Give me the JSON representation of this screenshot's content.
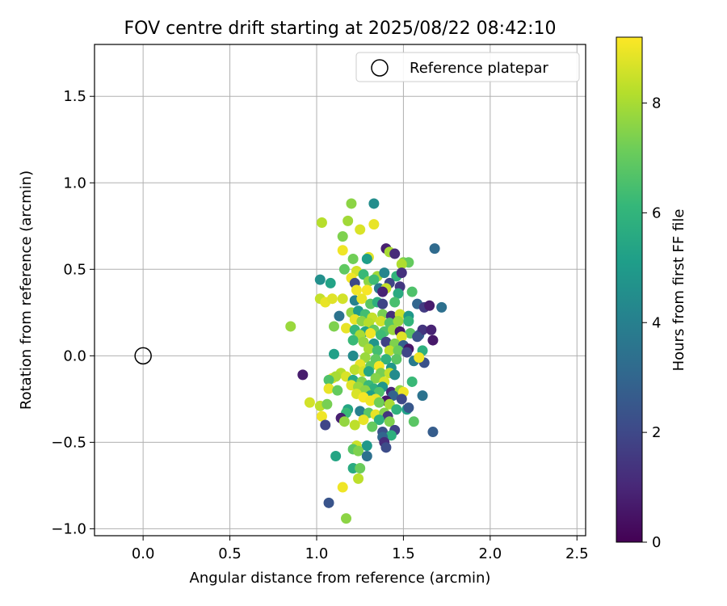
{
  "chart_data": {
    "type": "scatter",
    "title": "FOV centre drift starting at 2025/08/22 08:42:10",
    "xlabel": "Angular distance from reference (arcmin)",
    "ylabel": "Rotation from reference (arcmin)",
    "xlim": [
      -0.28,
      2.55
    ],
    "ylim": [
      -1.04,
      1.8
    ],
    "xticks": [
      0.0,
      0.5,
      1.0,
      1.5,
      2.0,
      2.5
    ],
    "xtick_labels": [
      "0.0",
      "0.5",
      "1.0",
      "1.5",
      "2.0",
      "2.5"
    ],
    "yticks": [
      -1.0,
      -0.5,
      0.0,
      0.5,
      1.0,
      1.5
    ],
    "ytick_labels": [
      "−1.0",
      "−0.5",
      "0.0",
      "0.5",
      "1.0",
      "1.5"
    ],
    "grid": true,
    "legend": {
      "position": "top-right",
      "entries": [
        "Reference platepar"
      ]
    },
    "reference_point": {
      "x": 0.0,
      "y": 0.0
    },
    "colorbar": {
      "label": "Hours from first FF file",
      "colormap": "viridis",
      "range": [
        0,
        9.2
      ],
      "ticks": [
        0,
        2,
        4,
        6,
        8
      ],
      "tick_labels": [
        "0",
        "2",
        "4",
        "6",
        "8"
      ]
    },
    "series": [
      {
        "points": [
          [
            1.2,
            0.88,
            7.6
          ],
          [
            1.33,
            0.88,
            4.5
          ],
          [
            1.03,
            0.77,
            8.2
          ],
          [
            1.18,
            0.78,
            7.9
          ],
          [
            1.33,
            0.76,
            8.9
          ],
          [
            1.25,
            0.73,
            8.7
          ],
          [
            1.15,
            0.69,
            7.4
          ],
          [
            1.68,
            0.62,
            3.2
          ],
          [
            1.4,
            0.62,
            0.8
          ],
          [
            1.15,
            0.61,
            9.0
          ],
          [
            1.42,
            0.6,
            8.0
          ],
          [
            1.45,
            0.59,
            1.1
          ],
          [
            1.3,
            0.57,
            8.8
          ],
          [
            1.21,
            0.56,
            7.2
          ],
          [
            1.29,
            0.56,
            5.1
          ],
          [
            1.5,
            0.54,
            7.4
          ],
          [
            1.53,
            0.54,
            7.0
          ],
          [
            1.49,
            0.53,
            8.1
          ],
          [
            1.16,
            0.5,
            6.9
          ],
          [
            1.23,
            0.49,
            8.6
          ],
          [
            1.27,
            0.47,
            6.2
          ],
          [
            1.35,
            0.46,
            7.9
          ],
          [
            1.39,
            0.48,
            4.2
          ],
          [
            1.46,
            0.46,
            6.0
          ],
          [
            1.49,
            0.48,
            1.3
          ],
          [
            1.02,
            0.44,
            4.6
          ],
          [
            1.2,
            0.45,
            9.0
          ],
          [
            1.22,
            0.42,
            2.0
          ],
          [
            1.08,
            0.42,
            5.3
          ],
          [
            1.3,
            0.43,
            7.6
          ],
          [
            1.33,
            0.44,
            6.3
          ],
          [
            1.42,
            0.42,
            1.9
          ],
          [
            1.48,
            0.4,
            1.5
          ],
          [
            1.36,
            0.39,
            3.7
          ],
          [
            1.4,
            0.39,
            8.4
          ],
          [
            1.23,
            0.38,
            9.0
          ],
          [
            1.29,
            0.38,
            9.1
          ],
          [
            1.38,
            0.37,
            0.9
          ],
          [
            1.47,
            0.36,
            5.6
          ],
          [
            1.55,
            0.37,
            6.6
          ],
          [
            1.02,
            0.33,
            8.4
          ],
          [
            1.05,
            0.31,
            8.9
          ],
          [
            1.09,
            0.33,
            8.8
          ],
          [
            1.15,
            0.33,
            8.6
          ],
          [
            1.22,
            0.32,
            4.1
          ],
          [
            1.26,
            0.33,
            8.9
          ],
          [
            1.31,
            0.3,
            6.8
          ],
          [
            1.35,
            0.31,
            5.8
          ],
          [
            1.38,
            0.3,
            1.9
          ],
          [
            1.45,
            0.31,
            6.5
          ],
          [
            1.58,
            0.3,
            3.0
          ],
          [
            1.62,
            0.28,
            1.6
          ],
          [
            1.65,
            0.29,
            0.7
          ],
          [
            1.72,
            0.28,
            3.4
          ],
          [
            1.13,
            0.23,
            3.5
          ],
          [
            1.2,
            0.25,
            7.7
          ],
          [
            1.24,
            0.26,
            5.0
          ],
          [
            1.28,
            0.24,
            6.4
          ],
          [
            1.32,
            0.22,
            8.4
          ],
          [
            1.38,
            0.24,
            7.3
          ],
          [
            1.43,
            0.23,
            1.2
          ],
          [
            1.48,
            0.24,
            8.5
          ],
          [
            1.53,
            0.23,
            4.9
          ],
          [
            1.22,
            0.21,
            8.9
          ],
          [
            1.26,
            0.2,
            7.6
          ],
          [
            1.3,
            0.19,
            8.2
          ],
          [
            1.37,
            0.2,
            8.6
          ],
          [
            1.42,
            0.19,
            6.7
          ],
          [
            1.47,
            0.2,
            7.8
          ],
          [
            1.53,
            0.2,
            6.0
          ],
          [
            0.85,
            0.17,
            7.8
          ],
          [
            1.1,
            0.17,
            7.4
          ],
          [
            1.17,
            0.16,
            8.9
          ],
          [
            1.22,
            0.15,
            6.1
          ],
          [
            1.28,
            0.14,
            5.3
          ],
          [
            1.33,
            0.15,
            7.0
          ],
          [
            1.39,
            0.14,
            6.6
          ],
          [
            1.44,
            0.15,
            7.8
          ],
          [
            1.48,
            0.14,
            0.6
          ],
          [
            1.54,
            0.13,
            6.8
          ],
          [
            1.59,
            0.12,
            3.0
          ],
          [
            1.61,
            0.15,
            1.4
          ],
          [
            1.66,
            0.15,
            0.9
          ],
          [
            1.25,
            0.12,
            8.0
          ],
          [
            1.31,
            0.13,
            9.0
          ],
          [
            1.37,
            0.12,
            6.3
          ],
          [
            1.49,
            0.11,
            8.8
          ],
          [
            1.58,
            0.11,
            2.3
          ],
          [
            1.67,
            0.09,
            0.6
          ],
          [
            1.21,
            0.09,
            6.2
          ],
          [
            1.27,
            0.08,
            7.7
          ],
          [
            1.33,
            0.07,
            4.8
          ],
          [
            1.4,
            0.08,
            1.8
          ],
          [
            1.45,
            0.07,
            7.4
          ],
          [
            1.5,
            0.06,
            2.8
          ],
          [
            1.53,
            0.04,
            0.5
          ],
          [
            1.61,
            0.03,
            5.8
          ],
          [
            1.3,
            0.04,
            8.0
          ],
          [
            1.35,
            0.03,
            6.4
          ],
          [
            1.42,
            0.03,
            8.3
          ],
          [
            1.47,
            0.03,
            7.1
          ],
          [
            1.52,
            0.02,
            1.9
          ],
          [
            1.1,
            0.01,
            5.2
          ],
          [
            1.21,
            0.0,
            4.4
          ],
          [
            1.28,
            -0.01,
            7.8
          ],
          [
            1.34,
            -0.02,
            6.9
          ],
          [
            1.4,
            -0.02,
            5.9
          ],
          [
            1.46,
            -0.02,
            6.8
          ],
          [
            1.56,
            -0.03,
            3.8
          ],
          [
            1.62,
            -0.04,
            2.3
          ],
          [
            1.59,
            -0.01,
            9.0
          ],
          [
            1.25,
            -0.05,
            8.9
          ],
          [
            1.31,
            -0.06,
            7.0
          ],
          [
            1.36,
            -0.06,
            9.1
          ],
          [
            1.43,
            -0.07,
            4.8
          ],
          [
            1.22,
            -0.08,
            8.3
          ],
          [
            1.27,
            -0.09,
            8.6
          ],
          [
            1.3,
            -0.09,
            5.4
          ],
          [
            1.37,
            -0.1,
            7.3
          ],
          [
            1.42,
            -0.1,
            8.4
          ],
          [
            1.45,
            -0.11,
            4.4
          ],
          [
            1.14,
            -0.1,
            8.2
          ],
          [
            1.17,
            -0.12,
            8.7
          ],
          [
            1.09,
            -0.13,
            9.0
          ],
          [
            0.92,
            -0.11,
            0.7
          ],
          [
            1.11,
            -0.12,
            8.0
          ],
          [
            1.07,
            -0.14,
            6.6
          ],
          [
            1.21,
            -0.14,
            5.5
          ],
          [
            1.26,
            -0.15,
            7.4
          ],
          [
            1.34,
            -0.13,
            7.5
          ],
          [
            1.39,
            -0.15,
            8.7
          ],
          [
            1.55,
            -0.15,
            6.2
          ],
          [
            1.2,
            -0.17,
            8.8
          ],
          [
            1.24,
            -0.18,
            7.8
          ],
          [
            1.3,
            -0.17,
            6.2
          ],
          [
            1.33,
            -0.19,
            5.8
          ],
          [
            1.38,
            -0.18,
            4.8
          ],
          [
            1.07,
            -0.19,
            8.9
          ],
          [
            1.12,
            -0.2,
            7.0
          ],
          [
            1.28,
            -0.2,
            7.6
          ],
          [
            1.36,
            -0.21,
            6.6
          ],
          [
            1.43,
            -0.21,
            1.0
          ],
          [
            1.48,
            -0.2,
            7.7
          ],
          [
            1.5,
            -0.21,
            9.0
          ],
          [
            1.23,
            -0.22,
            8.7
          ],
          [
            1.31,
            -0.23,
            5.2
          ],
          [
            1.44,
            -0.23,
            2.9
          ],
          [
            1.61,
            -0.23,
            3.5
          ],
          [
            1.27,
            -0.24,
            9.1
          ],
          [
            1.34,
            -0.25,
            8.9
          ],
          [
            1.4,
            -0.26,
            0.6
          ],
          [
            1.49,
            -0.25,
            2.0
          ],
          [
            0.96,
            -0.27,
            8.6
          ],
          [
            1.02,
            -0.29,
            8.3
          ],
          [
            1.06,
            -0.28,
            7.3
          ],
          [
            1.31,
            -0.26,
            9.0
          ],
          [
            1.36,
            -0.27,
            7.2
          ],
          [
            1.42,
            -0.28,
            8.0
          ],
          [
            1.46,
            -0.31,
            5.9
          ],
          [
            1.52,
            -0.31,
            5.2
          ],
          [
            1.53,
            -0.3,
            2.5
          ],
          [
            1.18,
            -0.31,
            5.4
          ],
          [
            1.17,
            -0.33,
            6.2
          ],
          [
            1.25,
            -0.32,
            4.0
          ],
          [
            1.3,
            -0.33,
            6.8
          ],
          [
            1.34,
            -0.34,
            8.9
          ],
          [
            1.39,
            -0.33,
            7.5
          ],
          [
            1.41,
            -0.35,
            1.4
          ],
          [
            1.03,
            -0.35,
            9.0
          ],
          [
            1.14,
            -0.36,
            0.8
          ],
          [
            1.27,
            -0.37,
            8.9
          ],
          [
            1.36,
            -0.37,
            5.8
          ],
          [
            1.42,
            -0.38,
            7.4
          ],
          [
            1.56,
            -0.38,
            6.8
          ],
          [
            1.05,
            -0.4,
            1.9
          ],
          [
            1.16,
            -0.38,
            7.7
          ],
          [
            1.22,
            -0.4,
            8.3
          ],
          [
            1.32,
            -0.41,
            7.0
          ],
          [
            1.38,
            -0.44,
            2.3
          ],
          [
            1.45,
            -0.43,
            1.8
          ],
          [
            1.43,
            -0.46,
            5.8
          ],
          [
            1.38,
            -0.47,
            3.0
          ],
          [
            1.67,
            -0.44,
            2.7
          ],
          [
            1.23,
            -0.52,
            8.5
          ],
          [
            1.29,
            -0.52,
            4.9
          ],
          [
            1.39,
            -0.5,
            1.2
          ],
          [
            1.4,
            -0.53,
            2.1
          ],
          [
            1.21,
            -0.54,
            6.8
          ],
          [
            1.24,
            -0.55,
            7.4
          ],
          [
            1.11,
            -0.58,
            5.4
          ],
          [
            1.29,
            -0.58,
            3.4
          ],
          [
            1.21,
            -0.65,
            5.6
          ],
          [
            1.25,
            -0.65,
            7.1
          ],
          [
            1.24,
            -0.71,
            8.3
          ],
          [
            1.15,
            -0.76,
            9.0
          ],
          [
            1.07,
            -0.85,
            2.4
          ],
          [
            1.17,
            -0.94,
            7.6
          ]
        ]
      }
    ]
  }
}
